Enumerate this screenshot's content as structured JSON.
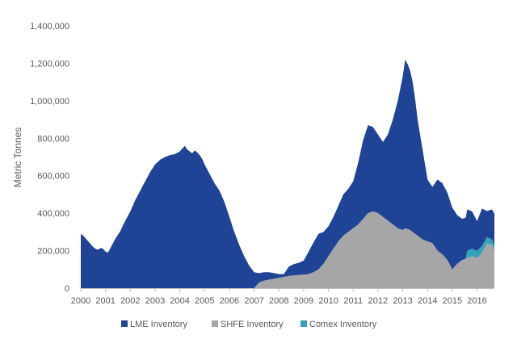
{
  "chart_data": {
    "type": "area",
    "title": "",
    "xlabel": "",
    "ylabel": "Metric Tonnes",
    "xlim": [
      2000,
      2016.7
    ],
    "ylim": [
      0,
      1400000
    ],
    "stacked": true,
    "grid": false,
    "legend_position": "bottom",
    "x_ticks": [
      "2000",
      "2001",
      "2002",
      "2003",
      "2004",
      "2005",
      "2006",
      "2007",
      "2008",
      "2009",
      "2010",
      "2011",
      "2012",
      "2013",
      "2014",
      "2015",
      "2016"
    ],
    "y_ticks": [
      "0",
      "200,000",
      "400,000",
      "600,000",
      "800,000",
      "1,000,000",
      "1,200,000",
      "1,400,000"
    ],
    "series": [
      {
        "name": "LME Inventory",
        "color": "#1f4496",
        "x": [
          2000.0,
          2000.1,
          2000.2,
          2000.3,
          2000.4,
          2000.5,
          2000.6,
          2000.7,
          2000.8,
          2000.9,
          2001.0,
          2001.1,
          2001.2,
          2001.3,
          2001.4,
          2001.5,
          2001.6,
          2001.7,
          2001.8,
          2001.9,
          2002.0,
          2002.2,
          2002.4,
          2002.6,
          2002.8,
          2003.0,
          2003.2,
          2003.4,
          2003.6,
          2003.8,
          2004.0,
          2004.1,
          2004.2,
          2004.3,
          2004.4,
          2004.5,
          2004.6,
          2004.7,
          2004.8,
          2004.9,
          2005.0,
          2005.2,
          2005.4,
          2005.6,
          2005.8,
          2006.0,
          2006.2,
          2006.4,
          2006.6,
          2006.8,
          2007.0,
          2007.2,
          2007.4,
          2007.6,
          2007.8,
          2008.0,
          2008.2,
          2008.4,
          2008.6,
          2008.8,
          2009.0,
          2009.2,
          2009.4,
          2009.6,
          2009.8,
          2010.0,
          2010.2,
          2010.4,
          2010.6,
          2010.8,
          2011.0,
          2011.2,
          2011.4,
          2011.6,
          2011.8,
          2012.0,
          2012.2,
          2012.4,
          2012.6,
          2012.8,
          2013.0,
          2013.1,
          2013.2,
          2013.3,
          2013.4,
          2013.5,
          2013.6,
          2013.8,
          2014.0,
          2014.2,
          2014.4,
          2014.6,
          2014.8,
          2015.0,
          2015.2,
          2015.4,
          2015.6,
          2015.8,
          2016.0,
          2016.2,
          2016.4,
          2016.6,
          2016.7
        ],
        "values": [
          290000,
          280000,
          265000,
          250000,
          235000,
          220000,
          210000,
          205000,
          215000,
          210000,
          195000,
          190000,
          215000,
          240000,
          265000,
          285000,
          305000,
          335000,
          360000,
          385000,
          410000,
          470000,
          520000,
          570000,
          620000,
          660000,
          685000,
          700000,
          710000,
          715000,
          730000,
          745000,
          760000,
          740000,
          730000,
          720000,
          735000,
          725000,
          710000,
          690000,
          660000,
          610000,
          560000,
          520000,
          460000,
          380000,
          300000,
          230000,
          170000,
          120000,
          85000,
          50000,
          45000,
          40000,
          30000,
          20000,
          15000,
          50000,
          60000,
          65000,
          75000,
          120000,
          160000,
          190000,
          170000,
          160000,
          170000,
          190000,
          220000,
          230000,
          250000,
          330000,
          420000,
          470000,
          450000,
          420000,
          400000,
          460000,
          560000,
          680000,
          820000,
          900000,
          880000,
          850000,
          800000,
          720000,
          620000,
          480000,
          330000,
          300000,
          380000,
          380000,
          360000,
          330000,
          260000,
          220000,
          220000,
          200000,
          160000,
          200000,
          140000,
          160000,
          170000
        ]
      },
      {
        "name": "SHFE  Inventory",
        "color": "#a6a6a6",
        "x": [
          2000.0,
          2007.0,
          2007.2,
          2007.4,
          2007.6,
          2007.8,
          2008.0,
          2008.2,
          2008.4,
          2008.6,
          2008.8,
          2009.0,
          2009.2,
          2009.4,
          2009.6,
          2009.8,
          2010.0,
          2010.2,
          2010.4,
          2010.6,
          2010.8,
          2011.0,
          2011.2,
          2011.4,
          2011.6,
          2011.8,
          2012.0,
          2012.2,
          2012.4,
          2012.6,
          2012.8,
          2013.0,
          2013.1,
          2013.2,
          2013.3,
          2013.4,
          2013.5,
          2013.6,
          2013.8,
          2014.0,
          2014.2,
          2014.4,
          2014.6,
          2014.8,
          2015.0,
          2015.2,
          2015.4,
          2015.6,
          2015.8,
          2016.0,
          2016.2,
          2016.4,
          2016.6,
          2016.7
        ],
        "values": [
          0,
          0,
          30000,
          40000,
          45000,
          50000,
          55000,
          60000,
          65000,
          68000,
          70000,
          72000,
          75000,
          85000,
          100000,
          130000,
          170000,
          210000,
          250000,
          280000,
          300000,
          320000,
          340000,
          370000,
          400000,
          410000,
          400000,
          380000,
          360000,
          340000,
          320000,
          310000,
          320000,
          315000,
          310000,
          300000,
          290000,
          280000,
          260000,
          250000,
          240000,
          200000,
          180000,
          150000,
          100000,
          130000,
          150000,
          160000,
          170000,
          160000,
          190000,
          240000,
          230000,
          200000
        ]
      },
      {
        "name": "Comex Inventory",
        "color": "#33a3bd",
        "x": [
          2000.0,
          2015.55,
          2015.6,
          2015.8,
          2016.0,
          2016.2,
          2016.4,
          2016.6,
          2016.7
        ],
        "values": [
          0,
          0,
          40000,
          40000,
          38000,
          35000,
          32000,
          30000,
          28000
        ]
      }
    ]
  }
}
